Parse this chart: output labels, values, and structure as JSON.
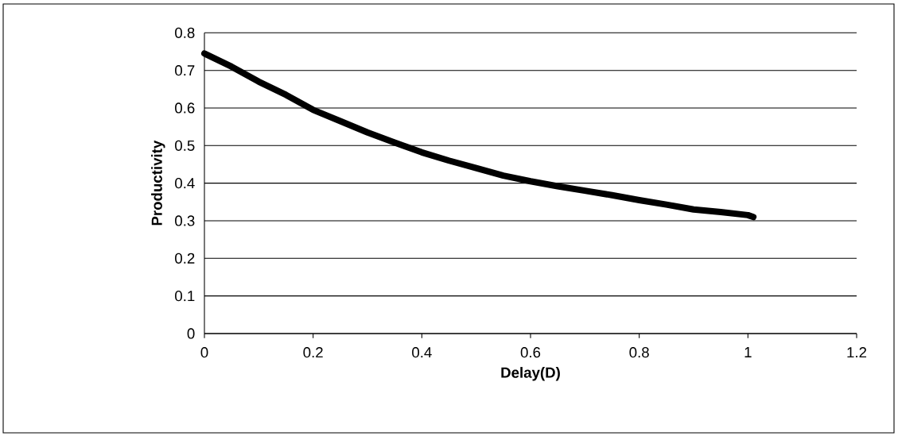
{
  "chart_data": {
    "type": "line",
    "xlabel": "Delay(D)",
    "ylabel": "Productivity",
    "color": "#000000",
    "grid": "y",
    "x": [
      0,
      0.05,
      0.1,
      0.15,
      0.2,
      0.25,
      0.3,
      0.35,
      0.4,
      0.45,
      0.5,
      0.55,
      0.6,
      0.65,
      0.7,
      0.75,
      0.8,
      0.85,
      0.9,
      0.95,
      1.0,
      1.01
    ],
    "values": [
      0.745,
      0.71,
      0.67,
      0.635,
      0.595,
      0.565,
      0.535,
      0.508,
      0.482,
      0.46,
      0.44,
      0.42,
      0.405,
      0.392,
      0.38,
      0.368,
      0.355,
      0.343,
      0.33,
      0.323,
      0.315,
      0.31
    ],
    "xlim": [
      0,
      1.2
    ],
    "ylim": [
      0,
      0.8
    ],
    "xticks": [
      0,
      0.2,
      0.4,
      0.6,
      0.8,
      1,
      1.2
    ],
    "yticks": [
      0,
      0.1,
      0.2,
      0.3,
      0.4,
      0.5,
      0.6,
      0.7,
      0.8
    ]
  }
}
